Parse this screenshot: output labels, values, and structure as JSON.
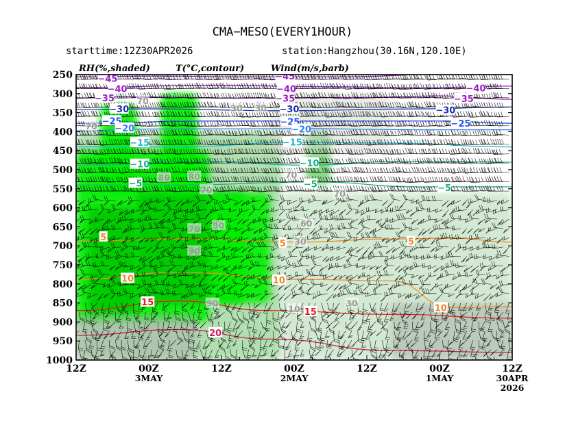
{
  "header": {
    "title": "CMA−MESO(EVERY1HOUR)",
    "starttime": "starttime:12Z30APR2026",
    "station": "station:Hangzhou(30.16N,120.10E)"
  },
  "legend": {
    "rh": "RH(%,shaded)",
    "temp": "T(°C,contour)",
    "wind": "Wind(m/s,barb)"
  },
  "colors": {
    "rh90": "#00c800",
    "rh80": "#00f000",
    "rh70": "#7ad37a",
    "rh60": "#a9dca9",
    "rh50": "#cfe7cf",
    "rhGray": "#a9b4a9",
    "rhGrayLight": "#d3dad3",
    "barb": "#000000"
  },
  "chart_data": {
    "type": "heatmap",
    "title": "CMA−MESO(EVERY1HOUR)",
    "subtitle_left": "starttime:12Z30APR2026",
    "subtitle_right": "station:Hangzhou(30.16N,120.10E)",
    "xlabel": "",
    "ylabel": "",
    "x_reversed": true,
    "xlim_hours": [
      0,
      72
    ],
    "ylim_hPa": [
      250,
      1000
    ],
    "y_ticks": [
      250,
      300,
      350,
      400,
      450,
      500,
      550,
      600,
      650,
      700,
      750,
      800,
      850,
      900,
      950,
      1000
    ],
    "x_ticks": [
      {
        "h": 72,
        "l1": "12Z",
        "l2": ""
      },
      {
        "h": 60,
        "l1": "00Z",
        "l2": "3MAY"
      },
      {
        "h": 48,
        "l1": "12Z",
        "l2": ""
      },
      {
        "h": 36,
        "l1": "00Z",
        "l2": "2MAY"
      },
      {
        "h": 24,
        "l1": "12Z",
        "l2": ""
      },
      {
        "h": 12,
        "l1": "00Z",
        "l2": "1MAY"
      },
      {
        "h": 0,
        "l1": "12Z",
        "l2": "30APR",
        "l3": "2026"
      }
    ],
    "rh_regions": [
      {
        "h1": 72,
        "h2": 38,
        "p1": 400,
        "p2": 1000,
        "rh": 60
      },
      {
        "h1": 38,
        "h2": 0,
        "p1": 560,
        "p2": 1000,
        "rh": 50
      },
      {
        "h1": 72,
        "h2": 50,
        "p1": 450,
        "p2": 900,
        "rh": 80
      },
      {
        "h1": 62,
        "h2": 44,
        "p1": 560,
        "p2": 850,
        "rh": 90
      },
      {
        "h1": 70,
        "h2": 62,
        "p1": 600,
        "p2": 880,
        "rh": 90
      },
      {
        "h1": 50,
        "h2": 40,
        "p1": 560,
        "p2": 850,
        "rh": 80
      },
      {
        "h1": 58,
        "h2": 52,
        "p1": 300,
        "p2": 560,
        "rh": 80
      },
      {
        "h1": 68,
        "h2": 62,
        "p1": 330,
        "p2": 560,
        "rh": 80
      },
      {
        "h1": 34,
        "h2": 30,
        "p1": 400,
        "p2": 540,
        "rh": 70
      },
      {
        "h1": 72,
        "h2": 52,
        "p1": 880,
        "p2": 1000,
        "rh": 95
      },
      {
        "h1": 20,
        "h2": 0,
        "p1": 850,
        "p2": 1000,
        "rh": 95
      },
      {
        "h1": 40,
        "h2": 20,
        "p1": 300,
        "p2": 460,
        "rh": 40
      }
    ],
    "rh_labels": [
      {
        "h": 61,
        "p": 318,
        "t": "70"
      },
      {
        "h": 69.5,
        "p": 385,
        "t": "70"
      },
      {
        "h": 45.5,
        "p": 337,
        "t": "30"
      },
      {
        "h": 41.5,
        "p": 337,
        "t": "30"
      },
      {
        "h": 57.5,
        "p": 520,
        "t": "80"
      },
      {
        "h": 52.5,
        "p": 517,
        "t": "80"
      },
      {
        "h": 50.5,
        "p": 552,
        "t": "70"
      },
      {
        "h": 36.5,
        "p": 513,
        "t": "70"
      },
      {
        "h": 28.5,
        "p": 562,
        "t": "70"
      },
      {
        "h": 52.5,
        "p": 655,
        "t": "70"
      },
      {
        "h": 48.5,
        "p": 646,
        "t": "90"
      },
      {
        "h": 34.0,
        "p": 640,
        "t": "60"
      },
      {
        "h": 52.5,
        "p": 713,
        "t": "90"
      },
      {
        "h": 35.0,
        "p": 688,
        "t": "30"
      },
      {
        "h": 49.5,
        "p": 850,
        "t": "90"
      },
      {
        "h": 36.0,
        "p": 865,
        "t": "10"
      },
      {
        "h": 26.5,
        "p": 850,
        "t": "30"
      }
    ],
    "temperature_contours": [
      {
        "v": -45,
        "color": "#9a1ec0",
        "pts": [
          [
            0,
            250
          ],
          [
            10,
            248
          ],
          [
            28,
            256
          ],
          [
            44,
            256
          ],
          [
            60,
            254
          ],
          [
            72,
            256
          ]
        ],
        "labels": [
          [
            66.8,
            260
          ],
          [
            37.5,
            254
          ]
        ]
      },
      {
        "v": -40,
        "color": "#9a1ec0",
        "pts": [
          [
            0,
            280
          ],
          [
            15,
            285
          ],
          [
            30,
            282
          ],
          [
            50,
            278
          ],
          [
            72,
            284
          ]
        ],
        "labels": [
          [
            65.2,
            287
          ],
          [
            6,
            285
          ],
          [
            37.3,
            287
          ]
        ]
      },
      {
        "v": -35,
        "color": "#9a1ec0",
        "pts": [
          [
            0,
            315
          ],
          [
            12,
            306
          ],
          [
            25,
            310
          ],
          [
            45,
            312
          ],
          [
            65,
            308
          ],
          [
            72,
            312
          ]
        ],
        "labels": [
          [
            67.3,
            311
          ],
          [
            37.5,
            312
          ],
          [
            8,
            313
          ]
        ]
      },
      {
        "v": -30,
        "color": "#2030b0",
        "pts": [
          [
            0,
            335
          ],
          [
            15,
            340
          ],
          [
            38,
            345
          ],
          [
            60,
            340
          ],
          [
            72,
            342
          ]
        ],
        "labels": [
          [
            64.9,
            340
          ],
          [
            36.8,
            340
          ],
          [
            11,
            343
          ]
        ]
      },
      {
        "v": -25,
        "color": "#2255ee",
        "pts": [
          [
            0,
            378
          ],
          [
            12,
            372
          ],
          [
            25,
            372
          ],
          [
            50,
            372
          ],
          [
            72,
            378
          ]
        ],
        "labels": [
          [
            66.1,
            371
          ],
          [
            36.7,
            373
          ],
          [
            8.5,
            378
          ]
        ]
      },
      {
        "v": -20,
        "color": "#2f7ff0",
        "pts": [
          [
            0,
            395
          ],
          [
            15,
            395
          ],
          [
            35,
            392
          ],
          [
            60,
            393
          ],
          [
            72,
            398
          ]
        ],
        "labels": [
          [
            64.0,
            390
          ],
          [
            34.8,
            393
          ]
        ]
      },
      {
        "v": -15,
        "color": "#18b8c8",
        "pts": [
          [
            0,
            440
          ],
          [
            20,
            430
          ],
          [
            36,
            428
          ],
          [
            55,
            440
          ],
          [
            72,
            440
          ]
        ],
        "labels": [
          [
            61.5,
            428
          ],
          [
            36.3,
            427
          ]
        ]
      },
      {
        "v": -10,
        "color": "#18b090",
        "pts": [
          [
            0,
            480
          ],
          [
            18,
            478
          ],
          [
            34,
            488
          ],
          [
            50,
            478
          ],
          [
            72,
            488
          ]
        ],
        "labels": [
          [
            61.5,
            485
          ],
          [
            33.5,
            482
          ]
        ]
      },
      {
        "v": -5,
        "color": "#18b070",
        "pts": [
          [
            0,
            545
          ],
          [
            15,
            545
          ],
          [
            33,
            532
          ],
          [
            55,
            540
          ],
          [
            72,
            540
          ]
        ],
        "labels": [
          [
            62.2,
            535
          ],
          [
            33.3,
            537
          ],
          [
            11.2,
            547
          ]
        ]
      },
      {
        "v": 5,
        "color": "#f08a28",
        "pts": [
          [
            0,
            690
          ],
          [
            10,
            680
          ],
          [
            20,
            682
          ],
          [
            35,
            690
          ],
          [
            55,
            682
          ],
          [
            72,
            688
          ]
        ],
        "labels": [
          [
            67.5,
            676
          ],
          [
            37.9,
            692
          ],
          [
            16.7,
            688
          ]
        ]
      },
      {
        "v": 10,
        "color": "#f08a28",
        "pts": [
          [
            0,
            860
          ],
          [
            10,
            862
          ],
          [
            20,
            792
          ],
          [
            35,
            788
          ],
          [
            55,
            770
          ],
          [
            72,
            788
          ]
        ],
        "labels": [
          [
            63.5,
            785
          ],
          [
            38.5,
            790
          ],
          [
            11.8,
            862
          ]
        ]
      },
      {
        "v": 15,
        "color": "#e02020",
        "pts": [
          [
            0,
            890
          ],
          [
            20,
            880
          ],
          [
            40,
            870
          ],
          [
            55,
            845
          ],
          [
            72,
            870
          ]
        ],
        "labels": [
          [
            60.2,
            847
          ],
          [
            33.3,
            872
          ]
        ]
      },
      {
        "v": 20,
        "color": "#d01858",
        "pts": [
          [
            0,
            980
          ],
          [
            20,
            975
          ],
          [
            40,
            945
          ],
          [
            55,
            920
          ],
          [
            72,
            935
          ]
        ],
        "labels": [
          [
            49.0,
            928
          ]
        ]
      }
    ],
    "wind_barbs": {
      "x_step_hours": 1,
      "levels": "every 25 hPa",
      "units": "m/s"
    }
  }
}
